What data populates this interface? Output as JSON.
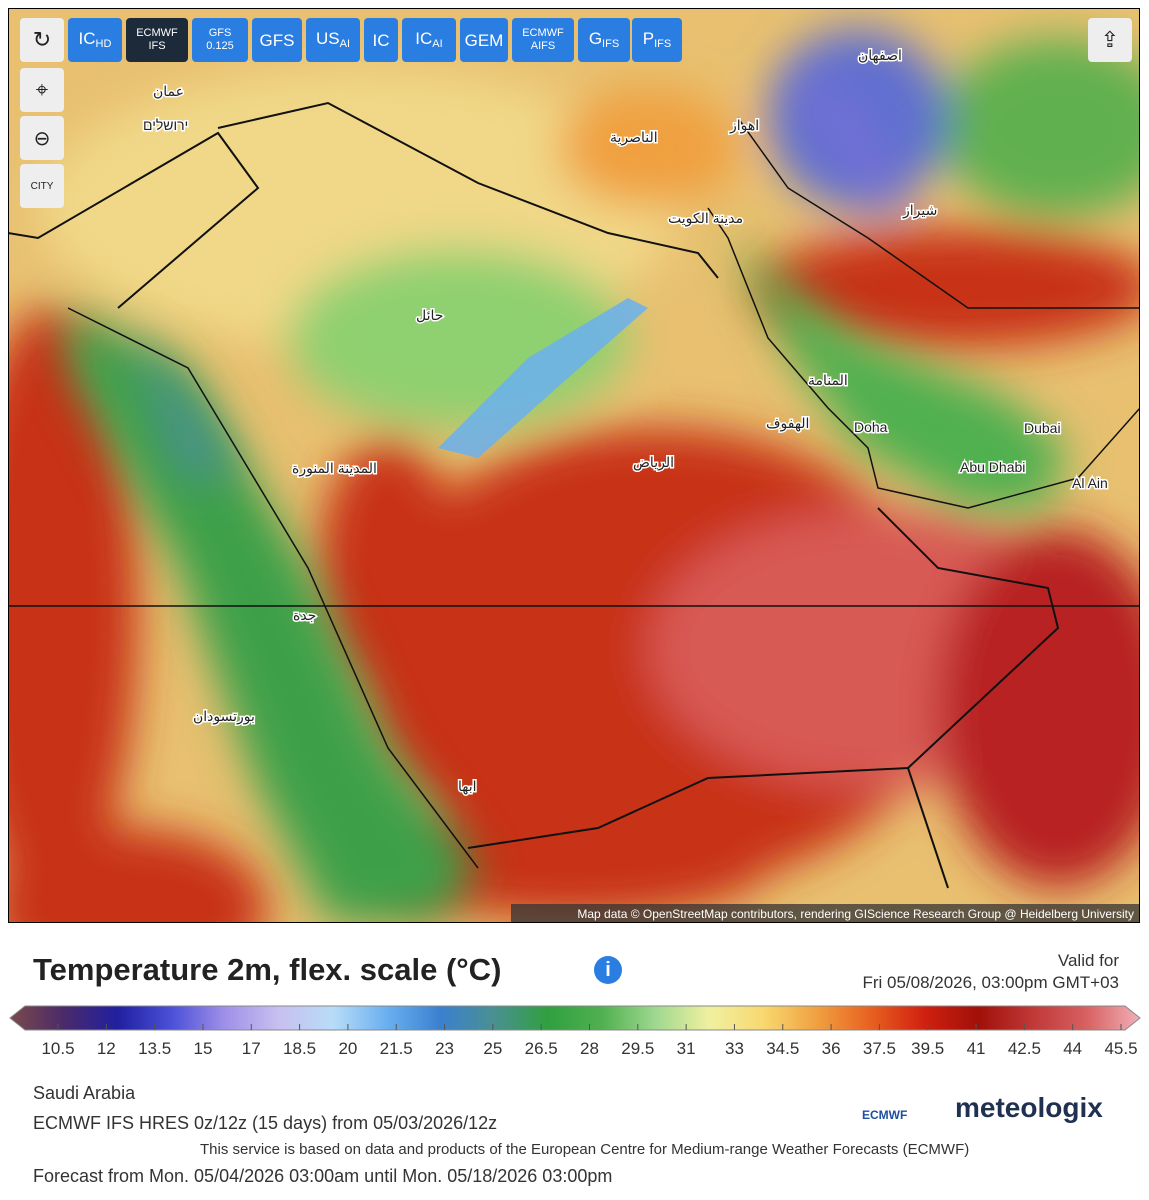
{
  "toolbar": {
    "buttons": [
      {
        "label": "IC",
        "sub": "HD"
      },
      {
        "label": "ECMWF",
        "line2": "IFS"
      },
      {
        "label": "GFS",
        "line2": "0.125"
      },
      {
        "label": "GFS"
      },
      {
        "label": "US",
        "sub": "AI"
      },
      {
        "label": "IC"
      },
      {
        "label": "IC",
        "sub": "AI"
      },
      {
        "label": "GEM"
      },
      {
        "label": "ECMWF",
        "line2": "AIFS"
      },
      {
        "label": "G",
        "sub": "IFS"
      },
      {
        "label": "P",
        "sub": "IFS"
      }
    ],
    "city_toggle": "CITY"
  },
  "map": {
    "cities": [
      "عمان",
      "ירושלים",
      "حائل",
      "الناصرية",
      "اهواز",
      "اصفهان",
      "شيراز",
      "مدينة الكويت",
      "المنامة",
      "الهفوف",
      "Doha",
      "Dubai",
      "Abu Dhabi",
      "Al Ain",
      "الرياض",
      "المدينة المنورة",
      "جدة",
      "بورتسودان",
      "ابها"
    ],
    "attribution": "Map data © OpenStreetMap contributors, rendering GIScience Research Group @ Heidelberg University"
  },
  "header": {
    "title": "Temperature 2m, flex. scale (°C)",
    "valid_label": "Valid for",
    "valid_time": "Fri 05/08/2026, 03:00pm GMT+03"
  },
  "legend": {
    "colors": [
      "#7a4a4a",
      "#4b2a6a",
      "#2020a0",
      "#4a50d8",
      "#a090e8",
      "#c8c0f0",
      "#b8dcf8",
      "#6ab0f0",
      "#3a80d0",
      "#4a9090",
      "#30a040",
      "#50b050",
      "#a0d890",
      "#f0f0a0",
      "#f8d870",
      "#f0a040",
      "#e86020",
      "#d02010",
      "#a01008",
      "#c03838",
      "#d86060",
      "#f0b0b8"
    ],
    "ticks": [
      10.5,
      12,
      13.5,
      15,
      17,
      18.5,
      20,
      21.5,
      23,
      25,
      26.5,
      28,
      29.5,
      31,
      33,
      34.5,
      36,
      37.5,
      39.5,
      41,
      42.5,
      44,
      45.5
    ]
  },
  "footer": {
    "region": "Saudi Arabia",
    "model": "ECMWF IFS HRES 0z/12z (15 days) from 05/03/2026/12z",
    "notice": "This service is based on data and products of the European Centre for Medium-range Weather Forecasts (ECMWF)",
    "period": "Forecast from Mon. 05/04/2026 03:00am until Mon. 05/18/2026 03:00pm",
    "logos": [
      "ECMWF",
      "meteologix"
    ]
  }
}
